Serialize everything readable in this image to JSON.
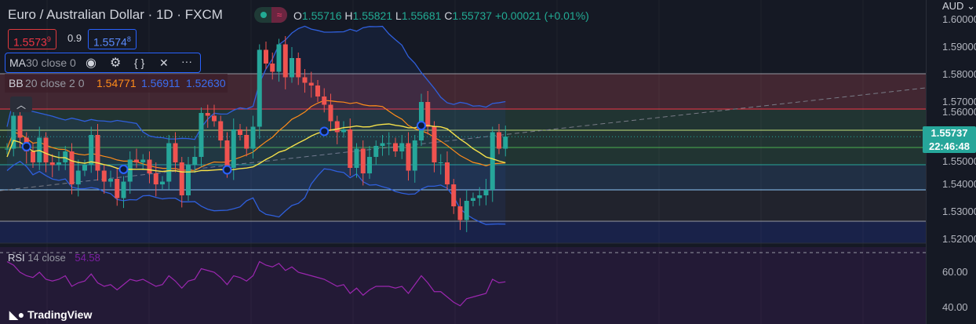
{
  "header": {
    "title": "Euro / Australian Dollar · 1D · FXCM",
    "ohlc": {
      "o_label": "O",
      "o": "1.55716",
      "h_label": "H",
      "h": "1.55821",
      "l_label": "L",
      "l": "1.55681",
      "c_label": "C",
      "c": "1.55737",
      "change": "+0.00021 (+0.01%)"
    },
    "toggle_icon": "≈"
  },
  "trade": {
    "sell": "1.5573",
    "sell_sup": "9",
    "spread": "0.9",
    "buy": "1.5574",
    "buy_sup": "8"
  },
  "ma": {
    "name": "MA",
    "params": "30 close 0"
  },
  "bb": {
    "name": "BB",
    "params": "20 close 2 0",
    "basis": "1.54771",
    "upper": "1.56911",
    "lower": "1.52630"
  },
  "axis": {
    "currency": "AUD",
    "ticks": [
      "1.60000",
      "1.59000",
      "1.58000",
      "1.57000",
      "1.56000",
      "1.55000",
      "1.54000",
      "1.53000",
      "1.52000"
    ],
    "rsi_ticks": [
      "60.00",
      "40.00"
    ],
    "last_price": "1.55737",
    "countdown": "22:46:48"
  },
  "rsi": {
    "name": "RSI",
    "params": "14 close",
    "value": "54.58"
  },
  "logo": "TradingView",
  "colors": {
    "up": "#26a69a",
    "down": "#ef5350",
    "ma": "#f5e14a",
    "bb_basis": "#ff8c1a",
    "bb_band": "#2f5fdc",
    "rsi": "#9c27b0"
  },
  "chart_data": {
    "type": "candlestick",
    "first_open": 1.553,
    "closes": [
      1.553,
      1.565,
      1.557,
      1.552,
      1.548,
      1.557,
      1.548,
      1.547,
      1.548,
      1.552,
      1.54,
      1.545,
      1.547,
      1.558,
      1.545,
      1.541,
      1.542,
      1.535,
      1.541,
      1.549,
      1.548,
      1.549,
      1.544,
      1.54,
      1.541,
      1.555,
      1.548,
      1.536,
      1.547,
      1.55,
      1.566,
      1.565,
      1.563,
      1.556,
      1.546,
      1.56,
      1.558,
      1.553,
      1.561,
      1.589,
      1.584,
      1.581,
      1.591,
      1.579,
      1.586,
      1.579,
      1.577,
      1.576,
      1.572,
      1.569,
      1.563,
      1.559,
      1.56,
      1.546,
      1.553,
      1.544,
      1.55,
      1.554,
      1.555,
      1.555,
      1.552,
      1.555,
      1.545,
      1.556,
      1.57,
      1.561,
      1.548,
      1.548,
      1.54,
      1.532,
      1.527,
      1.534,
      1.535,
      1.536,
      1.538,
      1.559,
      1.553,
      1.5574
    ],
    "rsi": [
      66,
      64,
      60,
      58,
      57,
      60,
      56,
      55,
      56,
      58,
      52,
      54,
      55,
      59,
      54,
      52,
      53,
      50,
      53,
      56,
      55,
      56,
      54,
      52,
      53,
      58,
      55,
      51,
      55,
      56,
      62,
      61,
      60,
      57,
      53,
      58,
      57,
      55,
      58,
      66,
      64,
      63,
      65,
      61,
      63,
      60,
      59,
      58,
      57,
      56,
      54,
      52,
      53,
      48,
      51,
      47,
      50,
      52,
      52,
      52,
      51,
      52,
      48,
      53,
      58,
      54,
      49,
      49,
      46,
      43,
      41,
      45,
      46,
      47,
      48,
      56,
      54,
      54.58
    ],
    "yrange": [
      1.515,
      1.6
    ],
    "rsi_range": [
      30,
      75
    ]
  }
}
